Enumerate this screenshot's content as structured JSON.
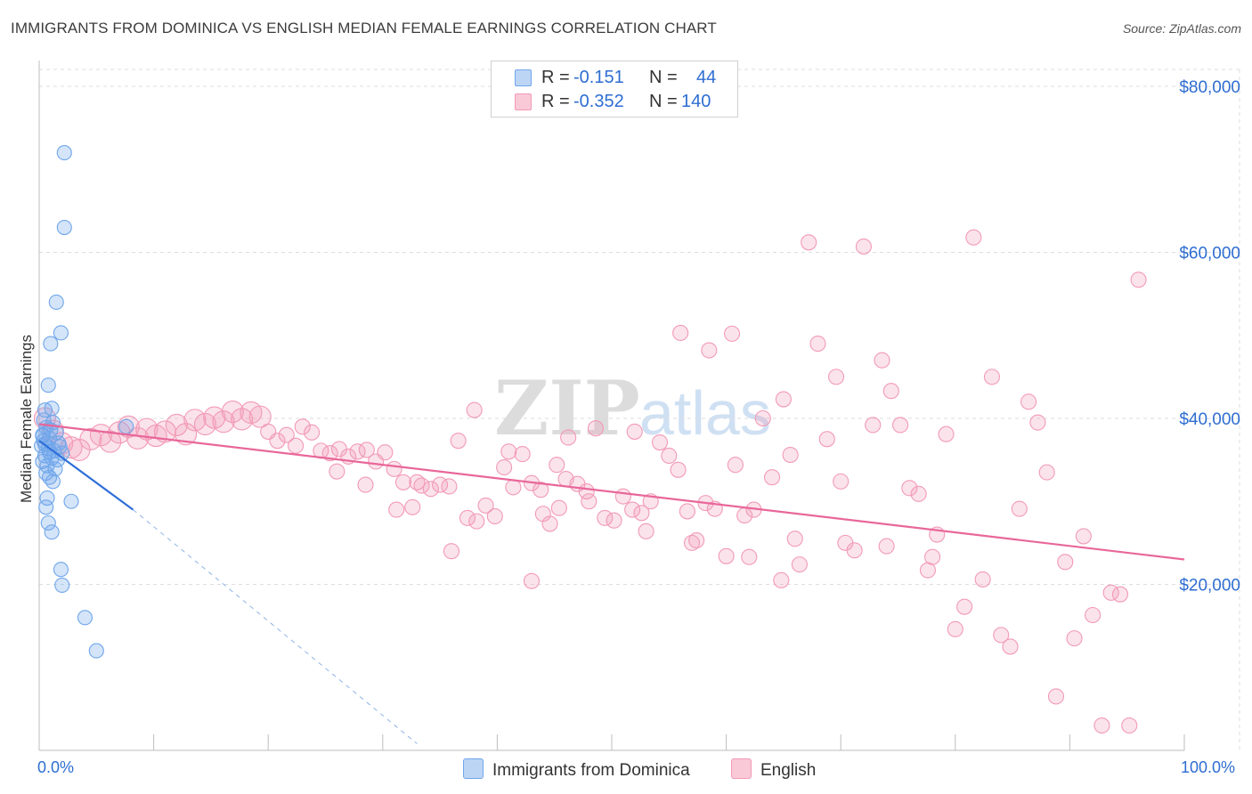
{
  "title": "IMMIGRANTS FROM DOMINICA VS ENGLISH MEDIAN FEMALE EARNINGS CORRELATION CHART",
  "source": "Source: ZipAtlas.com",
  "watermark": {
    "zip": "ZIP",
    "atlas": "atlas"
  },
  "legend_top": [
    {
      "r_label": "R =",
      "r_value": "-0.151",
      "n_label": "N =",
      "n_value": "44"
    },
    {
      "r_label": "R =",
      "r_value": "-0.352",
      "n_label": "N =",
      "n_value": "140"
    }
  ],
  "legend_bottom": [
    "Immigrants from Dominica",
    "English"
  ],
  "x_min_label": "0.0%",
  "x_max_label": "100.0%",
  "chart_data": {
    "type": "scatter",
    "ylabel": "Median Female Earnings",
    "xlim": [
      0,
      100
    ],
    "ylim": [
      0,
      80000
    ],
    "yticks": [
      20000,
      40000,
      60000,
      80000
    ],
    "ytick_labels": [
      "$20,000",
      "$40,000",
      "$60,000",
      "$80,000"
    ],
    "grid": true,
    "legend_placement": "top-center",
    "colors": {
      "dominica": "#6fa6ea",
      "english": "#f29ab6",
      "dominica_line": "#2f6fd8",
      "english_line": "#e8679a",
      "tick_text": "#2e6dd1"
    },
    "series": [
      {
        "name": "Immigrants from Dominica",
        "r": -0.151,
        "n": 44,
        "trend": {
          "x0": 0.0,
          "y0": 37300,
          "x1": 8.2,
          "y1": 29000,
          "dash_to_x": 33.0,
          "dash_to_y": 800
        },
        "points": [
          [
            2.2,
            72000
          ],
          [
            2.2,
            63000
          ],
          [
            1.5,
            54000
          ],
          [
            1.9,
            50300
          ],
          [
            1.0,
            49000
          ],
          [
            0.8,
            44000
          ],
          [
            1.1,
            41200
          ],
          [
            0.5,
            41000
          ],
          [
            0.4,
            39800
          ],
          [
            1.2,
            39500
          ],
          [
            0.6,
            38900
          ],
          [
            1.5,
            38300
          ],
          [
            0.3,
            38000
          ],
          [
            0.9,
            37600
          ],
          [
            0.4,
            37300
          ],
          [
            1.7,
            37000
          ],
          [
            0.2,
            36700
          ],
          [
            0.8,
            36400
          ],
          [
            1.3,
            36100
          ],
          [
            2.0,
            35800
          ],
          [
            0.5,
            35500
          ],
          [
            1.1,
            35200
          ],
          [
            0.3,
            34800
          ],
          [
            0.7,
            34300
          ],
          [
            1.4,
            33900
          ],
          [
            0.6,
            33400
          ],
          [
            0.9,
            32900
          ],
          [
            1.2,
            32400
          ],
          [
            0.7,
            30400
          ],
          [
            2.8,
            30000
          ],
          [
            0.6,
            29300
          ],
          [
            0.8,
            27400
          ],
          [
            1.1,
            26300
          ],
          [
            1.9,
            21800
          ],
          [
            2.0,
            19900
          ],
          [
            4.0,
            16000
          ],
          [
            5.0,
            12000
          ],
          [
            7.6,
            39000
          ],
          [
            0.5,
            36900
          ],
          [
            1.8,
            36600
          ],
          [
            0.3,
            37900
          ],
          [
            1.0,
            38600
          ],
          [
            0.9,
            35900
          ],
          [
            1.6,
            35000
          ]
        ]
      },
      {
        "name": "English",
        "r": -0.352,
        "n": 140,
        "trend": {
          "x0": 0.0,
          "y0": 39300,
          "x1": 100.0,
          "y1": 23000
        },
        "points": [
          [
            0.5,
            40000
          ],
          [
            1.2,
            38500
          ],
          [
            2.0,
            37000
          ],
          [
            2.8,
            36500
          ],
          [
            3.5,
            36200
          ],
          [
            4.5,
            37500
          ],
          [
            5.4,
            38000
          ],
          [
            6.2,
            37200
          ],
          [
            7.0,
            38300
          ],
          [
            7.8,
            39000
          ],
          [
            8.6,
            37600
          ],
          [
            9.4,
            38700
          ],
          [
            10.2,
            37900
          ],
          [
            11.0,
            38400
          ],
          [
            12.0,
            39200
          ],
          [
            12.8,
            38100
          ],
          [
            13.6,
            39800
          ],
          [
            14.5,
            39300
          ],
          [
            15.3,
            40100
          ],
          [
            16.1,
            39600
          ],
          [
            16.9,
            40800
          ],
          [
            17.7,
            39900
          ],
          [
            18.5,
            40700
          ],
          [
            19.3,
            40200
          ],
          [
            20.0,
            38400
          ],
          [
            20.8,
            37300
          ],
          [
            21.6,
            38000
          ],
          [
            22.4,
            36700
          ],
          [
            23.0,
            39000
          ],
          [
            23.8,
            38300
          ],
          [
            24.6,
            36100
          ],
          [
            25.4,
            35800
          ],
          [
            26.2,
            36300
          ],
          [
            27.0,
            35400
          ],
          [
            27.8,
            36000
          ],
          [
            28.6,
            36200
          ],
          [
            29.4,
            34800
          ],
          [
            30.2,
            35900
          ],
          [
            31.0,
            33900
          ],
          [
            31.8,
            32300
          ],
          [
            32.6,
            29300
          ],
          [
            33.4,
            31900
          ],
          [
            34.2,
            31500
          ],
          [
            35.0,
            32000
          ],
          [
            35.8,
            31800
          ],
          [
            36.6,
            37300
          ],
          [
            37.4,
            28000
          ],
          [
            38.2,
            27600
          ],
          [
            39.0,
            29500
          ],
          [
            39.8,
            28200
          ],
          [
            40.6,
            34100
          ],
          [
            41.4,
            31700
          ],
          [
            42.2,
            35700
          ],
          [
            43.0,
            32200
          ],
          [
            43.8,
            31400
          ],
          [
            44.6,
            27300
          ],
          [
            45.4,
            29200
          ],
          [
            46.2,
            37700
          ],
          [
            47.0,
            32100
          ],
          [
            47.8,
            31200
          ],
          [
            48.6,
            38800
          ],
          [
            49.4,
            28000
          ],
          [
            50.2,
            27700
          ],
          [
            51.0,
            30600
          ],
          [
            51.8,
            29000
          ],
          [
            52.6,
            28600
          ],
          [
            53.4,
            30000
          ],
          [
            54.2,
            37100
          ],
          [
            55.0,
            35500
          ],
          [
            55.8,
            33800
          ],
          [
            56.6,
            28800
          ],
          [
            57.4,
            25300
          ],
          [
            58.2,
            29800
          ],
          [
            59.0,
            29100
          ],
          [
            60.0,
            23400
          ],
          [
            60.8,
            34400
          ],
          [
            61.6,
            28300
          ],
          [
            62.4,
            29000
          ],
          [
            63.2,
            40000
          ],
          [
            64.0,
            32900
          ],
          [
            64.8,
            20500
          ],
          [
            65.6,
            35600
          ],
          [
            66.4,
            22400
          ],
          [
            67.2,
            61200
          ],
          [
            68.0,
            49000
          ],
          [
            68.8,
            37500
          ],
          [
            69.6,
            45000
          ],
          [
            70.4,
            25000
          ],
          [
            71.2,
            24100
          ],
          [
            72.0,
            60700
          ],
          [
            72.8,
            39200
          ],
          [
            73.6,
            47000
          ],
          [
            74.4,
            43300
          ],
          [
            75.2,
            39200
          ],
          [
            76.0,
            31600
          ],
          [
            76.8,
            30900
          ],
          [
            77.6,
            21700
          ],
          [
            78.4,
            26000
          ],
          [
            79.2,
            38100
          ],
          [
            80.0,
            14600
          ],
          [
            80.8,
            17300
          ],
          [
            81.6,
            61800
          ],
          [
            82.4,
            20600
          ],
          [
            83.2,
            45000
          ],
          [
            84.0,
            13900
          ],
          [
            84.8,
            12500
          ],
          [
            85.6,
            29100
          ],
          [
            86.4,
            42000
          ],
          [
            87.2,
            39500
          ],
          [
            88.0,
            33500
          ],
          [
            88.8,
            6500
          ],
          [
            89.6,
            22700
          ],
          [
            90.4,
            13500
          ],
          [
            91.2,
            25800
          ],
          [
            92.0,
            16300
          ],
          [
            92.8,
            3000
          ],
          [
            93.6,
            19000
          ],
          [
            94.4,
            18800
          ],
          [
            95.2,
            3000
          ],
          [
            96.0,
            56700
          ],
          [
            43.0,
            20400
          ],
          [
            31.2,
            29000
          ],
          [
            33.0,
            32300
          ],
          [
            36.0,
            24000
          ],
          [
            26.0,
            33600
          ],
          [
            28.5,
            32000
          ],
          [
            41.0,
            36000
          ],
          [
            44.0,
            28500
          ],
          [
            46.0,
            32700
          ],
          [
            52.0,
            38400
          ],
          [
            57.0,
            25000
          ],
          [
            62.0,
            23300
          ],
          [
            66.0,
            25500
          ],
          [
            70.0,
            32400
          ],
          [
            74.0,
            24600
          ],
          [
            78.0,
            23300
          ],
          [
            38.0,
            41000
          ],
          [
            45.2,
            34400
          ],
          [
            48.0,
            30000
          ],
          [
            53.0,
            26400
          ],
          [
            56.0,
            50300
          ],
          [
            58.5,
            48200
          ],
          [
            60.5,
            50200
          ],
          [
            65.0,
            42300
          ]
        ]
      }
    ]
  }
}
